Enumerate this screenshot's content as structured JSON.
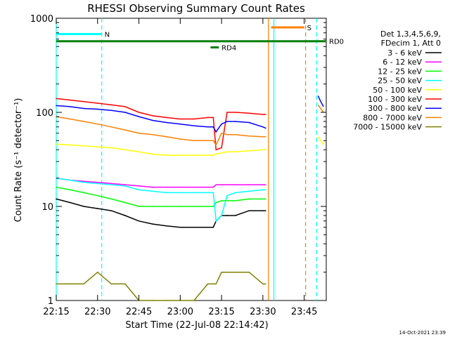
{
  "chart_data": {
    "type": "line",
    "title": "RHESSI Observing Summary Count Rates",
    "xlabel": "Start Time (22-Jul-08 22:14:42)",
    "ylabel": "Count Rate (s⁻¹ detector⁻¹)",
    "y_scale": "log",
    "ylim": [
      1,
      1000
    ],
    "xlim_minutes": [
      0,
      98
    ],
    "x_ticks": [
      {
        "t": 0,
        "label": "22:15"
      },
      {
        "t": 15,
        "label": "22:30"
      },
      {
        "t": 30,
        "label": "22:45"
      },
      {
        "t": 45,
        "label": "23:00"
      },
      {
        "t": 60,
        "label": "23:15"
      },
      {
        "t": 75,
        "label": "23:30"
      },
      {
        "t": 90,
        "label": "23:45"
      }
    ],
    "y_ticks": [
      {
        "v": 1,
        "label": "1"
      },
      {
        "v": 10,
        "label": "10"
      },
      {
        "v": 100,
        "label": "100"
      },
      {
        "v": 1000,
        "label": "1000"
      }
    ],
    "legend_header": [
      "Det 1,3,4,5,6,9,",
      "FDecim 1, Att 0"
    ],
    "legend_position": "right",
    "series": [
      {
        "name": "3 - 6 keV",
        "color": "#000000",
        "x": [
          0,
          5,
          10,
          15,
          20,
          25,
          30,
          35,
          40,
          45,
          50,
          55,
          57,
          58,
          60,
          62,
          65,
          70,
          75,
          76
        ],
        "values": [
          12,
          11,
          10,
          9.5,
          9,
          8,
          7,
          6.5,
          6.2,
          6,
          6,
          6,
          6,
          7,
          8,
          8,
          8,
          9,
          9,
          9
        ]
      },
      {
        "name": "6 - 12 keV",
        "color": "#ff00ff",
        "x": [
          0,
          5,
          10,
          15,
          20,
          25,
          30,
          35,
          40,
          45,
          50,
          55,
          57,
          58,
          60,
          62,
          65,
          70,
          75,
          76
        ],
        "values": [
          20,
          19,
          18.5,
          18,
          17.5,
          17,
          16.5,
          16,
          16,
          16,
          16,
          16,
          16,
          17,
          17,
          17,
          17,
          17,
          17,
          17
        ]
      },
      {
        "name": "12 - 25 keV",
        "color": "#00ff00",
        "x": [
          0,
          5,
          10,
          15,
          20,
          25,
          30,
          35,
          40,
          45,
          50,
          55,
          57,
          58,
          60,
          62,
          65,
          70,
          75,
          76
        ],
        "values": [
          16,
          15,
          14,
          13,
          12,
          11,
          10,
          10,
          10,
          10,
          10,
          10,
          10,
          11,
          11.5,
          11.5,
          11.5,
          12,
          12,
          12
        ]
      },
      {
        "name": "25 - 50 keV",
        "color": "#00ffff",
        "x": [
          0,
          5,
          10,
          15,
          20,
          25,
          30,
          35,
          40,
          45,
          50,
          55,
          57,
          58,
          60,
          62,
          65,
          70,
          75,
          76
        ],
        "values": [
          20,
          19,
          18,
          17.5,
          17,
          16.5,
          15,
          14.5,
          14,
          14,
          14,
          14,
          14,
          7,
          8,
          13,
          14,
          14.5,
          15,
          15
        ]
      },
      {
        "name": "50 - 100 keV",
        "color": "#ffff00",
        "x": [
          0,
          5,
          10,
          15,
          20,
          25,
          30,
          35,
          40,
          45,
          50,
          55,
          57,
          58,
          60,
          62,
          65,
          70,
          75,
          76
        ],
        "values": [
          46,
          45,
          44,
          43,
          42,
          40,
          38,
          36,
          35,
          35,
          35,
          35,
          35,
          36,
          37,
          38,
          38,
          39,
          40,
          40
        ]
      },
      {
        "name": "100 - 300 keV",
        "color": "#ff0000",
        "x": [
          0,
          5,
          10,
          15,
          20,
          25,
          30,
          35,
          40,
          45,
          50,
          55,
          57,
          58,
          60,
          62,
          65,
          70,
          75,
          76
        ],
        "values": [
          140,
          135,
          130,
          125,
          120,
          115,
          100,
          92,
          88,
          85,
          85,
          88,
          88,
          40,
          42,
          100,
          100,
          98,
          95,
          95
        ]
      },
      {
        "name": "300 - 800 keV",
        "color": "#0000ff",
        "x": [
          0,
          5,
          10,
          15,
          20,
          25,
          30,
          35,
          40,
          45,
          50,
          55,
          57,
          58,
          60,
          62,
          65,
          70,
          75,
          76
        ],
        "values": [
          118,
          115,
          110,
          108,
          105,
          100,
          90,
          82,
          78,
          75,
          72,
          70,
          70,
          62,
          75,
          80,
          80,
          78,
          70,
          68
        ]
      },
      {
        "name": "800 - 7000 keV",
        "color": "#ff8000",
        "x": [
          0,
          5,
          10,
          15,
          20,
          25,
          30,
          35,
          40,
          45,
          50,
          55,
          57,
          58,
          60,
          62,
          65,
          70,
          75,
          76
        ],
        "values": [
          90,
          85,
          80,
          75,
          70,
          65,
          60,
          58,
          55,
          52,
          50,
          50,
          50,
          45,
          60,
          58,
          58,
          56,
          55,
          55
        ]
      },
      {
        "name": "7000 - 15000 keV",
        "color": "#808000",
        "x": [
          0,
          5,
          10,
          15,
          20,
          25,
          30,
          35,
          40,
          45,
          50,
          55,
          57,
          58,
          60,
          62,
          65,
          70,
          75,
          76
        ],
        "values": [
          1.5,
          1.5,
          1.5,
          2,
          1.5,
          1.5,
          1,
          1,
          1,
          1,
          1,
          1.5,
          1.5,
          1.5,
          2,
          2,
          2,
          2,
          1.5,
          1.5
        ]
      }
    ],
    "post_gap_series_tail": {
      "x": [
        95,
        96,
        97
      ],
      "values_300_800": [
        150,
        130,
        115
      ],
      "values_800_7000": [
        120,
        110,
        100
      ],
      "values_50_100": [
        55,
        50,
        45
      ]
    },
    "annotations": [
      {
        "label": "N",
        "color": "#00ffff",
        "t_start": 0,
        "t_end": 16.5,
        "level": 680
      },
      {
        "label": "S",
        "color": "#ff8000",
        "t_start": 78,
        "t_end": 90,
        "level": 800
      },
      {
        "label": "RD0",
        "color": "#008000",
        "t_start": 0,
        "t_end": 98,
        "level": 570
      },
      {
        "label": "RD4",
        "color": "#008000",
        "t_start": 56,
        "t_end": 59,
        "level": 490
      }
    ],
    "vertical_markers": [
      {
        "t": 0,
        "color": "#00ffff",
        "style": "solid"
      },
      {
        "t": 16.5,
        "color": "#00ffff",
        "style": "dashed"
      },
      {
        "t": 77,
        "color": "#ff8000",
        "style": "solid"
      },
      {
        "t": 79,
        "color": "#00ffff",
        "style": "solid"
      },
      {
        "t": 90.5,
        "color": "#ff8000",
        "style": "dashed"
      },
      {
        "t": 94.5,
        "color": "#00ffff",
        "style": "dashed"
      }
    ],
    "date_stamp": "14-Oct-2021 23:39"
  }
}
